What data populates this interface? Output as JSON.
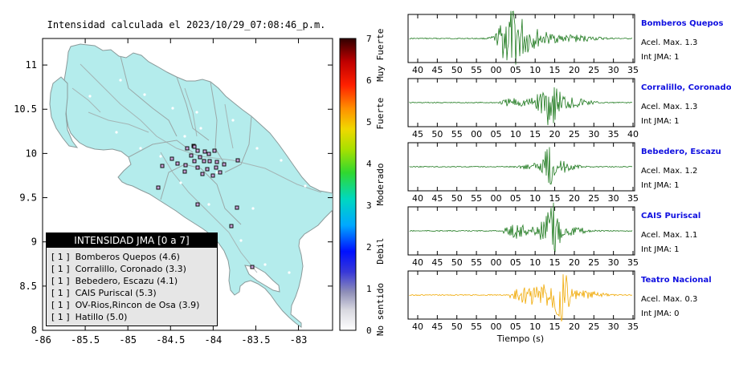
{
  "title": "Intensidad calculada el 2023/10/29_07:08:46_p.m.",
  "map": {
    "x_ticks": [
      "-86",
      "-85.5",
      "-85",
      "-84.5",
      "-84",
      "-83.5",
      "-83"
    ],
    "y_ticks": [
      "11",
      "10.5",
      "10",
      "9.5",
      "9",
      "8.5",
      "8"
    ],
    "land_color": "#b4ecec",
    "station_color": "#c8a0d8"
  },
  "legend": {
    "title": "INTENSIDAD JMA [0 a 7]",
    "entries": [
      "[ 1 ]  Bomberos Quepos (4.6)",
      "[ 1 ]  Corralillo, Coronado (3.3)",
      "[ 1 ]  Bebedero, Escazu (4.1)",
      "[ 1 ]  CAIS Puriscal (5.3)",
      "[ 1 ]  OV-Rios,Rincon de Osa (3.9)",
      "[ 1 ]  Hatillo (5.0)"
    ]
  },
  "colorbar": {
    "ticks": [
      "7",
      "6",
      "5",
      "4",
      "3",
      "2",
      "1",
      "0"
    ],
    "labels": [
      "Muy Fuerte",
      "Fuerte",
      "Moderado",
      "Debil",
      "No sentido"
    ]
  },
  "traces": [
    {
      "station": "Bomberos Quepos",
      "acel": "Acel. Max. 1.3",
      "int": "Int JMA: 1",
      "color": "#1f7a1f",
      "ticks": [
        "40",
        "45",
        "50",
        "55",
        "00",
        "05",
        "10",
        "15",
        "20",
        "25",
        "30",
        "35"
      ]
    },
    {
      "station": "Corralillo, Coronado",
      "acel": "Acel. Max. 1.3",
      "int": "Int JMA: 1",
      "color": "#1f7a1f",
      "ticks": [
        "45",
        "50",
        "55",
        "00",
        "05",
        "10",
        "15",
        "20",
        "25",
        "30",
        "35",
        "40"
      ]
    },
    {
      "station": "Bebedero, Escazu",
      "acel": "Acel. Max. 1.2",
      "int": "Int JMA: 1",
      "color": "#1f7a1f",
      "ticks": [
        "40",
        "45",
        "50",
        "55",
        "00",
        "05",
        "10",
        "15",
        "20",
        "25",
        "30",
        "35"
      ]
    },
    {
      "station": "CAIS Puriscal",
      "acel": "Acel. Max. 1.1",
      "int": "Int JMA: 1",
      "color": "#1f7a1f",
      "ticks": [
        "40",
        "45",
        "50",
        "55",
        "00",
        "05",
        "10",
        "15",
        "20",
        "25",
        "30",
        "35"
      ]
    },
    {
      "station": "Teatro Nacional",
      "acel": "Acel. Max. 0.3",
      "int": "Int JMA: 0",
      "color": "#f0a800",
      "ticks": [
        "40",
        "45",
        "50",
        "55",
        "00",
        "05",
        "10",
        "15",
        "20",
        "25",
        "30",
        "35"
      ]
    }
  ],
  "xlabel": "Tiempo (s)",
  "chart_data": [
    {
      "type": "scatter",
      "title": "Intensidad calculada el 2023/10/29_07:08:46_p.m.",
      "xlim": [
        -86,
        -82.6
      ],
      "ylim": [
        8,
        11.3
      ],
      "legend": [
        "Bomberos Quepos (4.6)",
        "Corralillo, Coronado (3.3)",
        "Bebedero, Escazu (4.1)",
        "CAIS Puriscal (5.3)",
        "OV-Rios,Rincon de Osa (3.9)",
        "Hatillo (5.0)"
      ],
      "colorbar": {
        "range": [
          0,
          7
        ],
        "labels": [
          "Muy Fuerte",
          "Fuerte",
          "Moderado",
          "Debil",
          "No sentido"
        ]
      }
    },
    {
      "type": "line",
      "xlabel": "Tiempo (s)",
      "series": [
        {
          "name": "Bomberos Quepos",
          "acel_max": 1.3,
          "int_jma": 1
        },
        {
          "name": "Corralillo, Coronado",
          "acel_max": 1.3,
          "int_jma": 1
        },
        {
          "name": "Bebedero, Escazu",
          "acel_max": 1.2,
          "int_jma": 1
        },
        {
          "name": "CAIS Puriscal",
          "acel_max": 1.1,
          "int_jma": 1
        },
        {
          "name": "Teatro Nacional",
          "acel_max": 0.3,
          "int_jma": 0
        }
      ]
    }
  ]
}
